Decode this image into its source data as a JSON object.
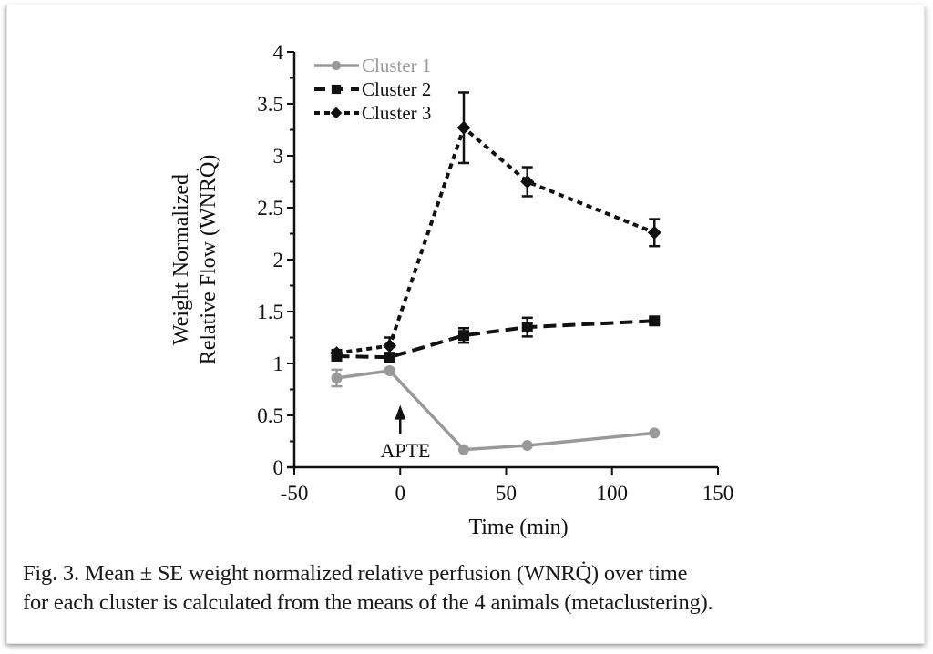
{
  "chart_data": {
    "type": "line",
    "title": "",
    "xlabel": "Time (min)",
    "ylabel_line1": "Weight Normalized",
    "ylabel_line2": "Relative Flow (WNRQ̇)",
    "xlim": [
      -50,
      150
    ],
    "ylim": [
      0,
      4
    ],
    "xticks": [
      "-50",
      "0",
      "50",
      "100",
      "150"
    ],
    "xtick_values": [
      -50,
      0,
      50,
      100,
      150
    ],
    "yticks": [
      "0",
      "0.5",
      "1",
      "1.5",
      "2",
      "2.5",
      "3",
      "3.5",
      "4"
    ],
    "ytick_values": [
      0,
      0.5,
      1,
      1.5,
      2,
      2.5,
      3,
      3.5,
      4
    ],
    "grid": false,
    "legend_position": "top-left",
    "x": [
      -30,
      -5,
      30,
      60,
      120
    ],
    "series": [
      {
        "name": "Cluster 1",
        "marker": "circle",
        "line": "solid",
        "color": "#999999",
        "values": [
          0.86,
          0.93,
          0.17,
          0.21,
          0.33
        ],
        "err": [
          0.08,
          0.02,
          0.01,
          0.01,
          0.01
        ]
      },
      {
        "name": "Cluster 2",
        "marker": "square",
        "line": "long-dash",
        "color": "#111111",
        "values": [
          1.07,
          1.06,
          1.27,
          1.35,
          1.41
        ],
        "err": [
          0.02,
          0.02,
          0.07,
          0.09,
          0.02
        ]
      },
      {
        "name": "Cluster 3",
        "marker": "diamond",
        "line": "short-dash",
        "color": "#111111",
        "values": [
          1.1,
          1.17,
          3.27,
          2.75,
          2.26
        ],
        "err": [
          0.03,
          0.08,
          0.34,
          0.14,
          0.13
        ]
      }
    ],
    "annotations": [
      {
        "text": "APTE",
        "x": 0,
        "arrow": "up",
        "arrow_from": 0.32,
        "arrow_to": 0.6
      }
    ]
  },
  "caption": {
    "line1": "Fig. 3.  Mean ± SE weight normalized relative perfusion (WNRQ̇) over time",
    "line2": "for each cluster is calculated from the means of the 4 animals (metaclustering)."
  }
}
